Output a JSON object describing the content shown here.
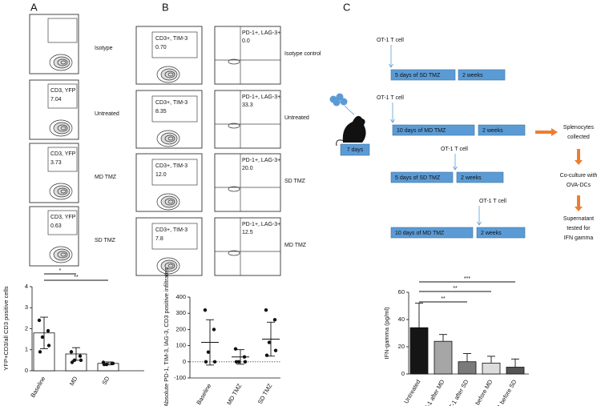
{
  "panel_labels": [
    "A",
    "B",
    "C"
  ],
  "panel_a_flow": {
    "rows": [
      {
        "label": "Isotype"
      },
      {
        "label": "Untreated",
        "gate": "CD3, YFP",
        "value": "7.04"
      },
      {
        "label": "MD TMZ",
        "gate": "CD3, YFP",
        "value": "3.73"
      },
      {
        "label": "SD TMZ",
        "gate": "CD3, YFP",
        "value": "0.63"
      }
    ]
  },
  "panel_b_flow": {
    "left_gate": "CD3+, TIM-3",
    "right_gate": "PD-1+, LAG-3+",
    "rows": [
      {
        "label": "Isotype control",
        "left": "0.70",
        "right": "0.0"
      },
      {
        "label": "Untreated",
        "left": "8.35",
        "right": "33.3"
      },
      {
        "label": "SD TMZ",
        "left": "12.0",
        "right": "20.0"
      },
      {
        "label": "MD TMZ",
        "left": "7.8",
        "right": "12.5"
      }
    ]
  },
  "diagram": {
    "cell_label": "OT-1 T cell",
    "mouse_label": "7 days",
    "rows": [
      {
        "treatment": "5 days of SD TMZ",
        "wait": "2 weeks"
      },
      {
        "treatment": "10 days of MD TMZ",
        "wait": "2 weeks"
      },
      {
        "treatment": "5 days of SD TMZ",
        "wait": "2 weeks"
      },
      {
        "treatment": "10 days of MD TMZ",
        "wait": "2 weeks"
      }
    ],
    "steps": [
      [
        "Splenocytes",
        "collected"
      ],
      [
        "Co-culture with",
        "OVA-DCs"
      ],
      [
        "Supernatant",
        "tested for",
        "IFN gamma"
      ]
    ]
  },
  "chart_data": [
    {
      "type": "bar",
      "y_label": "YFP+CD3/all CD3 positive cells",
      "categories": [
        "Baseline",
        "MD",
        "SD"
      ],
      "values": [
        1.8,
        0.8,
        0.35
      ],
      "errors": [
        0.75,
        0.3,
        0.07
      ],
      "points": [
        [
          2.4,
          1.9,
          1.6,
          1.2,
          0.9
        ],
        [
          0.9,
          0.7,
          0.5,
          0.5,
          0.4
        ],
        [
          0.4,
          0.35,
          0.3,
          0.35,
          0.3
        ]
      ],
      "colors": [
        "#ffffff",
        "#ffffff",
        "#ffffff"
      ],
      "ylim": [
        0,
        4
      ],
      "yticks": [
        0,
        1,
        2,
        3,
        4
      ],
      "annotations": [
        "*",
        "**"
      ]
    },
    {
      "type": "dotplot",
      "y_label": "Absolute PD-1, TIM-3, lAG-3, CD3 positive infiltrates",
      "categories": [
        "Baseline",
        "MD TMZ",
        "SD TMZ"
      ],
      "values": [
        120,
        30,
        140
      ],
      "errors": [
        140,
        45,
        105
      ],
      "points": [
        [
          320,
          200,
          60,
          0,
          0
        ],
        [
          80,
          30,
          0,
          0,
          0
        ],
        [
          320,
          260,
          120,
          70,
          40
        ]
      ],
      "ylim": [
        -100,
        400
      ],
      "yticks": [
        -100,
        0,
        100,
        200,
        300,
        400
      ]
    },
    {
      "type": "bar",
      "y_label": "IFN-gamma (pg/ml)",
      "categories": [
        "Untreated",
        "OT-1 after MD",
        "OT-1 after SD",
        "OT-1 before MD",
        "OT-1 before SD"
      ],
      "values": [
        34,
        24,
        9,
        8,
        5
      ],
      "errors": [
        18,
        5,
        6,
        5,
        6
      ],
      "colors": [
        "#151515",
        "#a6a6a6",
        "#7a7a7a",
        "#dcdcdc",
        "#555555"
      ],
      "ylim": [
        0,
        60
      ],
      "yticks": [
        0,
        20,
        40,
        60
      ],
      "annotations": [
        "***",
        "**",
        "**"
      ]
    }
  ]
}
